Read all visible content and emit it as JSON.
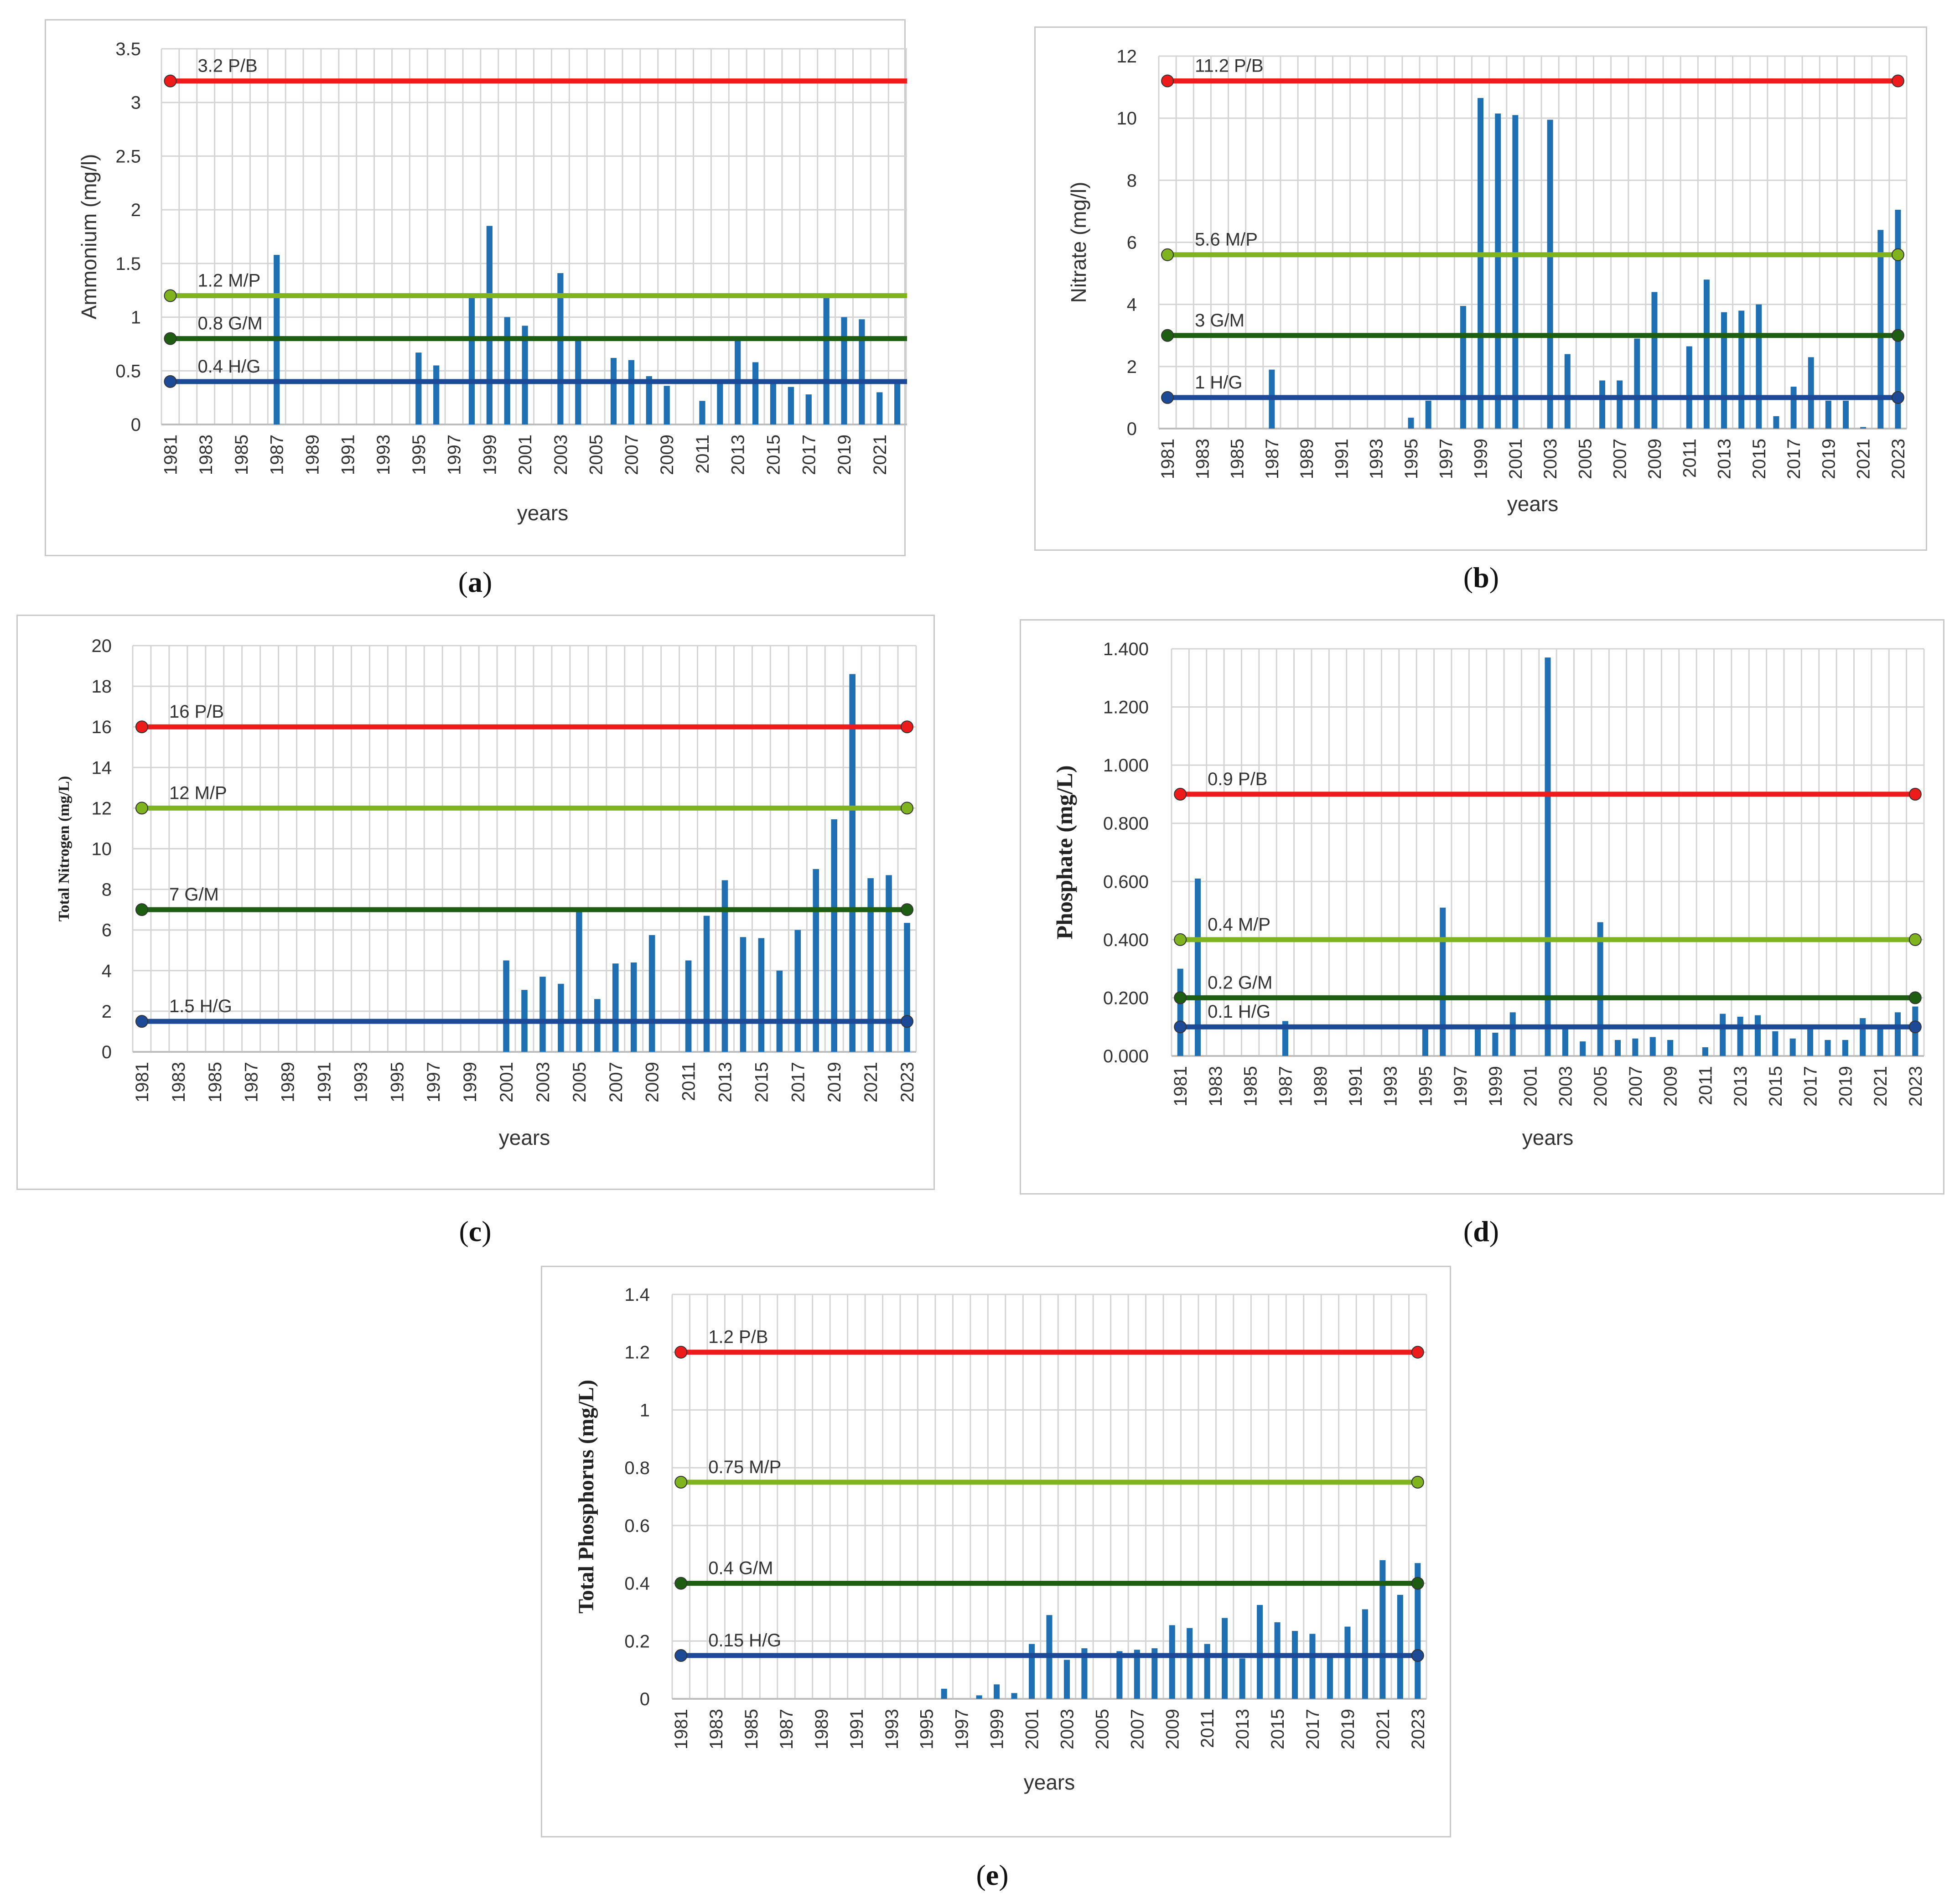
{
  "threshold_colors": {
    "P/B": "#ee1b1b",
    "M/P": "#7fb41f",
    "G/M": "#1d5e12",
    "H/G": "#1d4a96"
  },
  "bar_color": "#1f6fb3",
  "grid_color": "#d4d4d4",
  "chart_data": [
    {
      "id": "a",
      "caption": "a",
      "type": "bar",
      "xlabel": "years",
      "ylabel": "Ammonium (mg/l)",
      "ylim": [
        0,
        3.5
      ],
      "yticks": [
        "0",
        "0.5",
        "1",
        "1.5",
        "2",
        "2.5",
        "3",
        "3.5"
      ],
      "ytick_values": [
        0,
        0.5,
        1,
        1.5,
        2,
        2.5,
        3,
        3.5
      ],
      "x_start": 1981,
      "x_end": 2023,
      "xtick_labels": [
        "1981",
        "1983",
        "1985",
        "1987",
        "1989",
        "1991",
        "1993",
        "1995",
        "1997",
        "1999",
        "2001",
        "2003",
        "2005",
        "2007",
        "2009",
        "2011",
        "2013",
        "2015",
        "2017",
        "2019",
        "2021",
        "2023"
      ],
      "bars": [
        {
          "year": 1987,
          "value": 1.58
        },
        {
          "year": 1995,
          "value": 0.67
        },
        {
          "year": 1996,
          "value": 0.55
        },
        {
          "year": 1998,
          "value": 1.2
        },
        {
          "year": 1999,
          "value": 1.85
        },
        {
          "year": 2000,
          "value": 1.0
        },
        {
          "year": 2001,
          "value": 0.92
        },
        {
          "year": 2003,
          "value": 1.41
        },
        {
          "year": 2004,
          "value": 0.8
        },
        {
          "year": 2006,
          "value": 0.62
        },
        {
          "year": 2007,
          "value": 0.6
        },
        {
          "year": 2008,
          "value": 0.45
        },
        {
          "year": 2009,
          "value": 0.36
        },
        {
          "year": 2011,
          "value": 0.22
        },
        {
          "year": 2012,
          "value": 0.4
        },
        {
          "year": 2013,
          "value": 0.8
        },
        {
          "year": 2014,
          "value": 0.58
        },
        {
          "year": 2015,
          "value": 0.4
        },
        {
          "year": 2016,
          "value": 0.35
        },
        {
          "year": 2017,
          "value": 0.28
        },
        {
          "year": 2018,
          "value": 1.22
        },
        {
          "year": 2019,
          "value": 1.0
        },
        {
          "year": 2020,
          "value": 0.98
        },
        {
          "year": 2021,
          "value": 0.3
        },
        {
          "year": 2022,
          "value": 0.4
        },
        {
          "year": 2023,
          "value": 0.25
        }
      ],
      "thresholds": [
        {
          "value": 3.2,
          "label": "3.2 P/B",
          "class": "P/B"
        },
        {
          "value": 1.2,
          "label": "1.2 M/P",
          "class": "M/P"
        },
        {
          "value": 0.8,
          "label": "0.8 G/M",
          "class": "G/M"
        },
        {
          "value": 0.4,
          "label": "0.4 H/G",
          "class": "H/G"
        }
      ]
    },
    {
      "id": "b",
      "caption": "b",
      "type": "bar",
      "xlabel": "years",
      "ylabel": "Nitrate (mg/l)",
      "ylim": [
        0,
        12
      ],
      "yticks": [
        "0",
        "2",
        "4",
        "6",
        "8",
        "10",
        "12"
      ],
      "ytick_values": [
        0,
        2,
        4,
        6,
        8,
        10,
        12
      ],
      "x_start": 1981,
      "x_end": 2023,
      "xtick_labels": [
        "1981",
        "1983",
        "1985",
        "1987",
        "1989",
        "1991",
        "1993",
        "1995",
        "1997",
        "1999",
        "2001",
        "2003",
        "2005",
        "2007",
        "2009",
        "2011",
        "2013",
        "2015",
        "2017",
        "2019",
        "2021",
        "2023"
      ],
      "bars": [
        {
          "year": 1987,
          "value": 1.9
        },
        {
          "year": 1995,
          "value": 0.35
        },
        {
          "year": 1996,
          "value": 0.9
        },
        {
          "year": 1998,
          "value": 3.95
        },
        {
          "year": 1999,
          "value": 10.65
        },
        {
          "year": 2000,
          "value": 10.15
        },
        {
          "year": 2001,
          "value": 10.1
        },
        {
          "year": 2003,
          "value": 9.95
        },
        {
          "year": 2004,
          "value": 2.4
        },
        {
          "year": 2006,
          "value": 1.55
        },
        {
          "year": 2007,
          "value": 1.55
        },
        {
          "year": 2008,
          "value": 2.9
        },
        {
          "year": 2009,
          "value": 4.4
        },
        {
          "year": 2011,
          "value": 2.65
        },
        {
          "year": 2012,
          "value": 4.8
        },
        {
          "year": 2013,
          "value": 3.75
        },
        {
          "year": 2014,
          "value": 3.8
        },
        {
          "year": 2015,
          "value": 4.0
        },
        {
          "year": 2016,
          "value": 0.4
        },
        {
          "year": 2017,
          "value": 1.35
        },
        {
          "year": 2018,
          "value": 2.3
        },
        {
          "year": 2019,
          "value": 0.9
        },
        {
          "year": 2020,
          "value": 0.9
        },
        {
          "year": 2021,
          "value": 0.05
        },
        {
          "year": 2022,
          "value": 6.4
        },
        {
          "year": 2023,
          "value": 7.05
        }
      ],
      "thresholds": [
        {
          "value": 11.2,
          "label": "11.2 P/B",
          "class": "P/B"
        },
        {
          "value": 5.6,
          "label": "5.6 M/P",
          "class": "M/P"
        },
        {
          "value": 3,
          "label": "3 G/M",
          "class": "G/M"
        },
        {
          "value": 1,
          "label": "1 H/G",
          "class": "H/G"
        }
      ]
    },
    {
      "id": "c",
      "caption": "c",
      "type": "bar",
      "xlabel": "years",
      "ylabel": "Total Nitrogen (mg/L)",
      "ylim": [
        0,
        20
      ],
      "yticks": [
        "0",
        "2",
        "4",
        "6",
        "8",
        "10",
        "12",
        "14",
        "16",
        "18",
        "20"
      ],
      "ytick_values": [
        0,
        2,
        4,
        6,
        8,
        10,
        12,
        14,
        16,
        18,
        20
      ],
      "x_start": 1981,
      "x_end": 2023,
      "xtick_labels": [
        "1981",
        "1983",
        "1985",
        "1987",
        "1989",
        "1991",
        "1993",
        "1995",
        "1997",
        "1999",
        "2001",
        "2003",
        "2005",
        "2007",
        "2009",
        "2011",
        "2013",
        "2015",
        "2017",
        "2019",
        "2021",
        "2023"
      ],
      "bars": [
        {
          "year": 2001,
          "value": 4.5
        },
        {
          "year": 2002,
          "value": 3.05
        },
        {
          "year": 2003,
          "value": 3.7
        },
        {
          "year": 2004,
          "value": 3.35
        },
        {
          "year": 2005,
          "value": 6.9
        },
        {
          "year": 2006,
          "value": 2.6
        },
        {
          "year": 2007,
          "value": 4.35
        },
        {
          "year": 2008,
          "value": 4.4
        },
        {
          "year": 2009,
          "value": 5.75
        },
        {
          "year": 2011,
          "value": 4.5
        },
        {
          "year": 2012,
          "value": 6.7
        },
        {
          "year": 2013,
          "value": 8.45
        },
        {
          "year": 2014,
          "value": 5.65
        },
        {
          "year": 2015,
          "value": 5.6
        },
        {
          "year": 2016,
          "value": 4.0
        },
        {
          "year": 2017,
          "value": 6.0
        },
        {
          "year": 2018,
          "value": 9.0
        },
        {
          "year": 2019,
          "value": 11.45
        },
        {
          "year": 2020,
          "value": 18.6
        },
        {
          "year": 2021,
          "value": 8.55
        },
        {
          "year": 2022,
          "value": 8.7
        },
        {
          "year": 2023,
          "value": 6.35
        }
      ],
      "thresholds": [
        {
          "value": 16,
          "label": "16 P/B",
          "class": "P/B"
        },
        {
          "value": 12,
          "label": "12 M/P",
          "class": "M/P"
        },
        {
          "value": 7,
          "label": "7 G/M",
          "class": "G/M"
        },
        {
          "value": 1.5,
          "label": "1.5 H/G",
          "class": "H/G"
        }
      ]
    },
    {
      "id": "d",
      "caption": "d",
      "type": "bar",
      "xlabel": "years",
      "ylabel": "Phosphate (mg/L)",
      "ylim": [
        0,
        1.4
      ],
      "yticks": [
        "0.000",
        "0.200",
        "0.400",
        "0.600",
        "0.800",
        "1.000",
        "1.200",
        "1.400"
      ],
      "ytick_values": [
        0,
        0.2,
        0.4,
        0.6,
        0.8,
        1.0,
        1.2,
        1.4
      ],
      "x_start": 1981,
      "x_end": 2023,
      "xtick_labels": [
        "1981",
        "1983",
        "1985",
        "1987",
        "1989",
        "1991",
        "1993",
        "1995",
        "1997",
        "1999",
        "2001",
        "2003",
        "2005",
        "2007",
        "2009",
        "2011",
        "2013",
        "2015",
        "2017",
        "2019",
        "2021",
        "2023"
      ],
      "bars": [
        {
          "year": 1981,
          "value": 0.3
        },
        {
          "year": 1982,
          "value": 0.61
        },
        {
          "year": 1987,
          "value": 0.12
        },
        {
          "year": 1995,
          "value": 0.1
        },
        {
          "year": 1996,
          "value": 0.51
        },
        {
          "year": 1998,
          "value": 0.1
        },
        {
          "year": 1999,
          "value": 0.08
        },
        {
          "year": 2000,
          "value": 0.15
        },
        {
          "year": 2002,
          "value": 1.37
        },
        {
          "year": 2003,
          "value": 0.1
        },
        {
          "year": 2004,
          "value": 0.05
        },
        {
          "year": 2005,
          "value": 0.46
        },
        {
          "year": 2006,
          "value": 0.055
        },
        {
          "year": 2007,
          "value": 0.06
        },
        {
          "year": 2008,
          "value": 0.065
        },
        {
          "year": 2009,
          "value": 0.055
        },
        {
          "year": 2011,
          "value": 0.03
        },
        {
          "year": 2012,
          "value": 0.145
        },
        {
          "year": 2013,
          "value": 0.135
        },
        {
          "year": 2014,
          "value": 0.14
        },
        {
          "year": 2015,
          "value": 0.085
        },
        {
          "year": 2016,
          "value": 0.06
        },
        {
          "year": 2017,
          "value": 0.1
        },
        {
          "year": 2018,
          "value": 0.055
        },
        {
          "year": 2019,
          "value": 0.055
        },
        {
          "year": 2020,
          "value": 0.13
        },
        {
          "year": 2021,
          "value": 0.1
        },
        {
          "year": 2022,
          "value": 0.15
        },
        {
          "year": 2023,
          "value": 0.17
        }
      ],
      "thresholds": [
        {
          "value": 0.9,
          "label": "0.9 P/B",
          "class": "P/B"
        },
        {
          "value": 0.4,
          "label": "0.4 M/P",
          "class": "M/P"
        },
        {
          "value": 0.2,
          "label": "0.2 G/M",
          "class": "G/M"
        },
        {
          "value": 0.1,
          "label": "0.1 H/G",
          "class": "H/G"
        }
      ]
    },
    {
      "id": "e",
      "caption": "e",
      "type": "bar",
      "xlabel": "years",
      "ylabel": "Total Phosphorus (mg/L)",
      "ylim": [
        0,
        1.4
      ],
      "yticks": [
        "0",
        "0.2",
        "0.4",
        "0.6",
        "0.8",
        "1",
        "1.2",
        "1.4"
      ],
      "ytick_values": [
        0,
        0.2,
        0.4,
        0.6,
        0.8,
        1.0,
        1.2,
        1.4
      ],
      "x_start": 1981,
      "x_end": 2023,
      "xtick_labels": [
        "1981",
        "1983",
        "1985",
        "1987",
        "1989",
        "1991",
        "1993",
        "1995",
        "1997",
        "1999",
        "2001",
        "2003",
        "2005",
        "2007",
        "2009",
        "2011",
        "2013",
        "2015",
        "2017",
        "2019",
        "2021",
        "2023"
      ],
      "bars": [
        {
          "year": 1996,
          "value": 0.035
        },
        {
          "year": 1998,
          "value": 0.012
        },
        {
          "year": 1999,
          "value": 0.05
        },
        {
          "year": 2000,
          "value": 0.02
        },
        {
          "year": 2001,
          "value": 0.19
        },
        {
          "year": 2002,
          "value": 0.29
        },
        {
          "year": 2003,
          "value": 0.135
        },
        {
          "year": 2004,
          "value": 0.175
        },
        {
          "year": 2006,
          "value": 0.165
        },
        {
          "year": 2007,
          "value": 0.17
        },
        {
          "year": 2008,
          "value": 0.175
        },
        {
          "year": 2009,
          "value": 0.255
        },
        {
          "year": 2010,
          "value": 0.245
        },
        {
          "year": 2011,
          "value": 0.19
        },
        {
          "year": 2012,
          "value": 0.28
        },
        {
          "year": 2013,
          "value": 0.14
        },
        {
          "year": 2014,
          "value": 0.325
        },
        {
          "year": 2015,
          "value": 0.265
        },
        {
          "year": 2016,
          "value": 0.235
        },
        {
          "year": 2017,
          "value": 0.225
        },
        {
          "year": 2018,
          "value": 0.15
        },
        {
          "year": 2019,
          "value": 0.25
        },
        {
          "year": 2020,
          "value": 0.31
        },
        {
          "year": 2021,
          "value": 0.48
        },
        {
          "year": 2022,
          "value": 0.36
        },
        {
          "year": 2023,
          "value": 0.47
        }
      ],
      "thresholds": [
        {
          "value": 1.2,
          "label": "1.2 P/B",
          "class": "P/B"
        },
        {
          "value": 0.75,
          "label": "0.75 M/P",
          "class": "M/P"
        },
        {
          "value": 0.4,
          "label": "0.4 G/M",
          "class": "G/M"
        },
        {
          "value": 0.15,
          "label": "0.15 H/G",
          "class": "H/G"
        }
      ]
    }
  ]
}
